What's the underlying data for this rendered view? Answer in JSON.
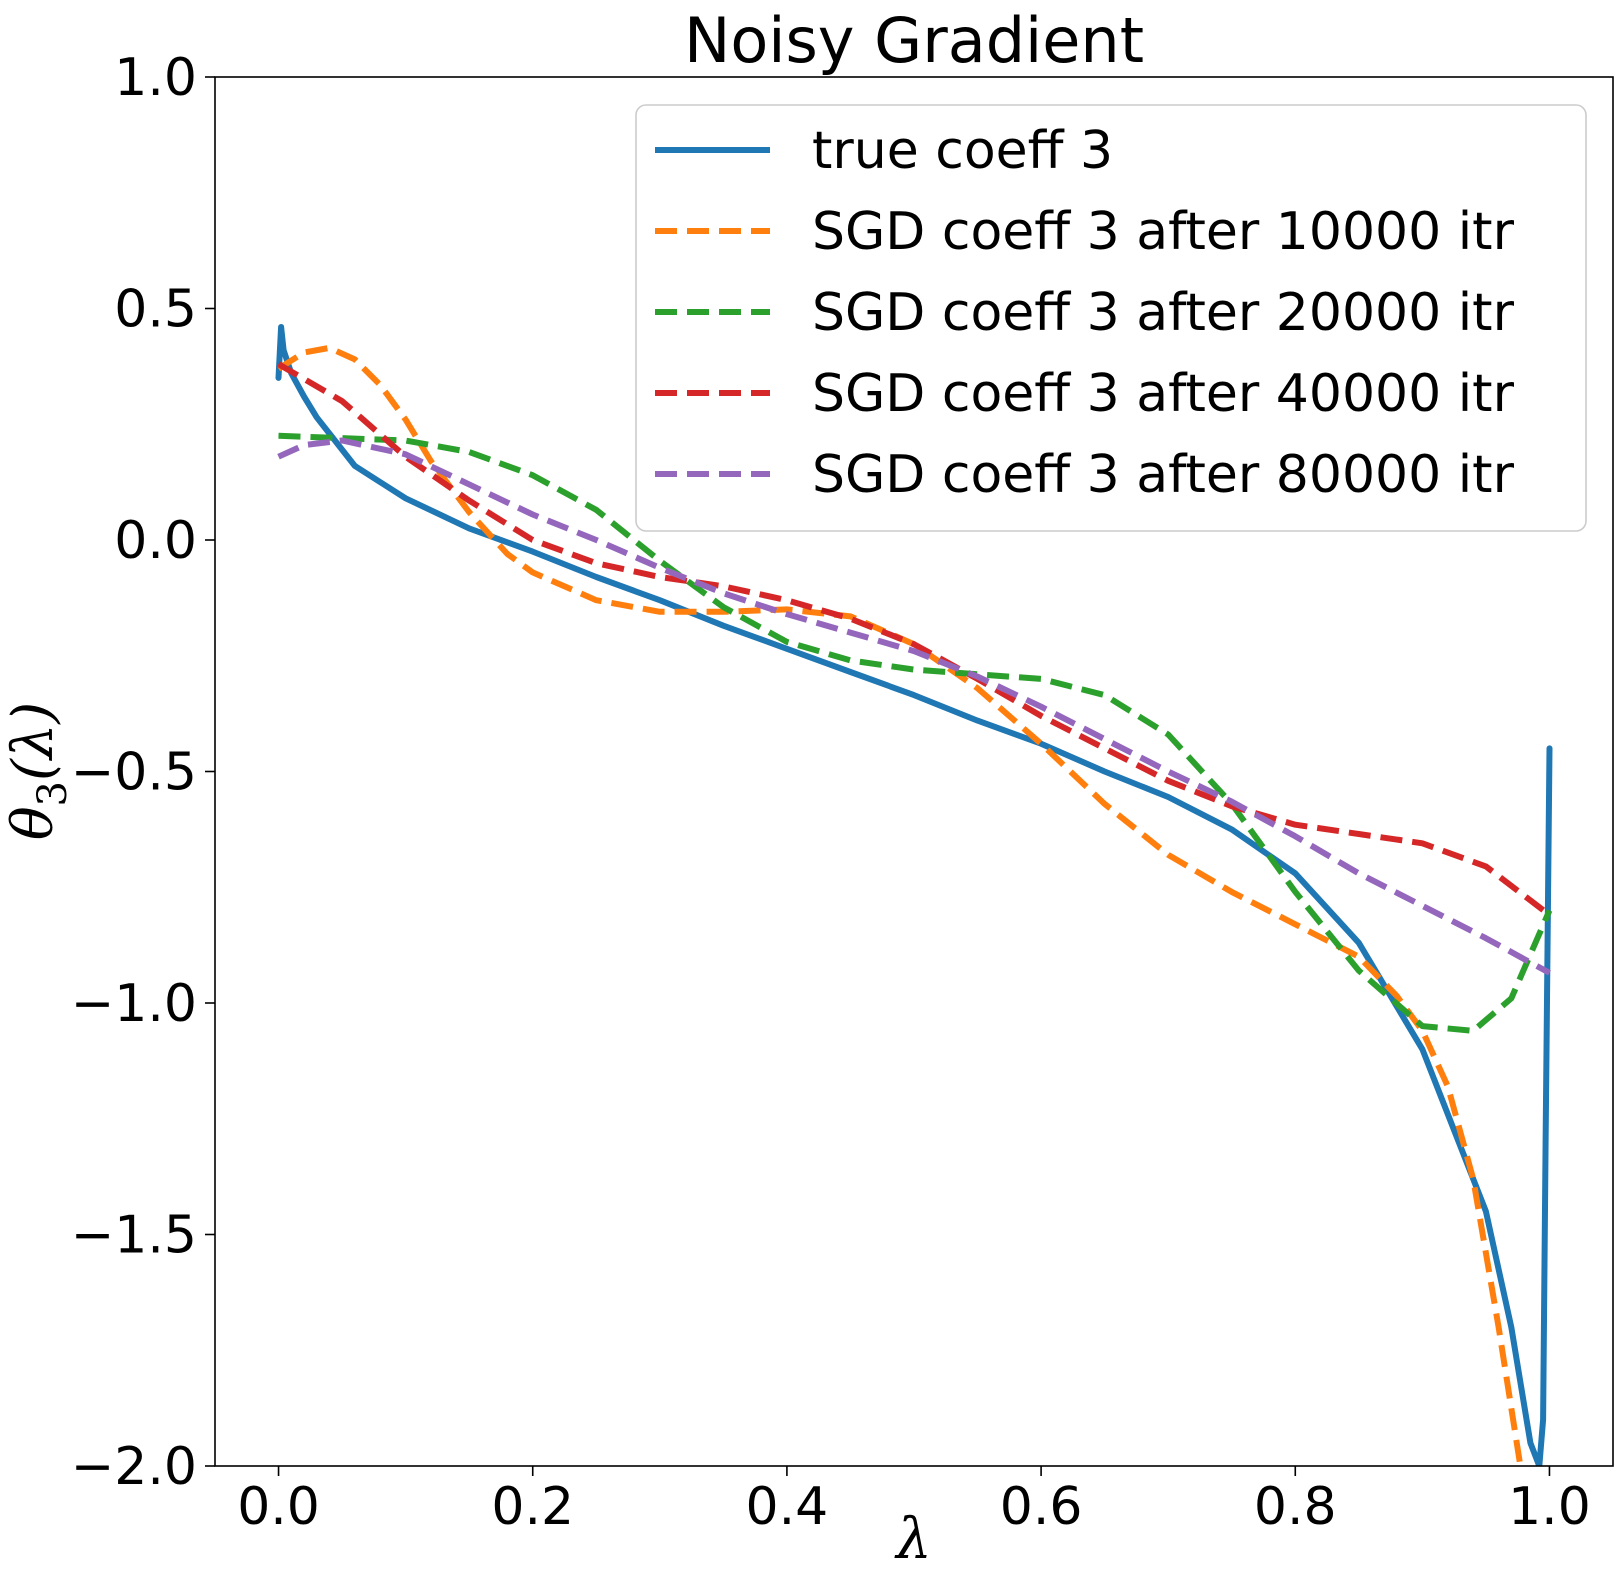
{
  "chart_data": {
    "type": "line",
    "title": "Noisy Gradient",
    "xlabel": "λ",
    "ylabel": {
      "base": "θ",
      "subscript": "3",
      "suffix": "(λ)"
    },
    "xlim": [
      -0.05,
      1.05
    ],
    "ylim": [
      -2.0,
      1.0
    ],
    "x_ticks": [
      0.0,
      0.2,
      0.4,
      0.6,
      0.8,
      1.0
    ],
    "x_tick_labels": [
      "0.0",
      "0.2",
      "0.4",
      "0.6",
      "0.8",
      "1.0"
    ],
    "y_ticks": [
      1.0,
      0.5,
      0.0,
      -0.5,
      -1.0,
      -1.5,
      -2.0
    ],
    "y_tick_labels": [
      "1.0",
      "0.5",
      "0.0",
      "−0.5",
      "−1.0",
      "−1.5",
      "−2.0"
    ],
    "grid": false,
    "legend_position": "upper right",
    "series": [
      {
        "name": "true coeff 3",
        "color": "#1f77b4",
        "style": "solid",
        "points": [
          [
            0.0,
            0.35
          ],
          [
            0.002,
            0.46
          ],
          [
            0.004,
            0.41
          ],
          [
            0.01,
            0.36
          ],
          [
            0.02,
            0.31
          ],
          [
            0.03,
            0.265
          ],
          [
            0.04,
            0.23
          ],
          [
            0.06,
            0.16
          ],
          [
            0.08,
            0.125
          ],
          [
            0.1,
            0.09
          ],
          [
            0.15,
            0.025
          ],
          [
            0.2,
            -0.025
          ],
          [
            0.25,
            -0.08
          ],
          [
            0.3,
            -0.13
          ],
          [
            0.35,
            -0.185
          ],
          [
            0.4,
            -0.235
          ],
          [
            0.45,
            -0.285
          ],
          [
            0.5,
            -0.335
          ],
          [
            0.55,
            -0.39
          ],
          [
            0.6,
            -0.44
          ],
          [
            0.65,
            -0.5
          ],
          [
            0.7,
            -0.555
          ],
          [
            0.75,
            -0.625
          ],
          [
            0.8,
            -0.72
          ],
          [
            0.85,
            -0.87
          ],
          [
            0.9,
            -1.1
          ],
          [
            0.95,
            -1.45
          ],
          [
            0.97,
            -1.7
          ],
          [
            0.985,
            -1.95
          ],
          [
            0.992,
            -2.0
          ],
          [
            0.995,
            -1.9
          ],
          [
            0.997,
            -1.3
          ],
          [
            1.0,
            -0.45
          ]
        ]
      },
      {
        "name": "SGD coeff 3 after 10000 itr",
        "color": "#ff7f0e",
        "style": "dashed",
        "points": [
          [
            0.0,
            0.37
          ],
          [
            0.02,
            0.405
          ],
          [
            0.04,
            0.415
          ],
          [
            0.06,
            0.39
          ],
          [
            0.08,
            0.335
          ],
          [
            0.1,
            0.26
          ],
          [
            0.12,
            0.17
          ],
          [
            0.15,
            0.06
          ],
          [
            0.18,
            -0.03
          ],
          [
            0.2,
            -0.07
          ],
          [
            0.25,
            -0.13
          ],
          [
            0.3,
            -0.155
          ],
          [
            0.35,
            -0.155
          ],
          [
            0.4,
            -0.15
          ],
          [
            0.45,
            -0.165
          ],
          [
            0.5,
            -0.225
          ],
          [
            0.55,
            -0.32
          ],
          [
            0.6,
            -0.44
          ],
          [
            0.65,
            -0.57
          ],
          [
            0.7,
            -0.68
          ],
          [
            0.75,
            -0.76
          ],
          [
            0.8,
            -0.83
          ],
          [
            0.85,
            -0.9
          ],
          [
            0.88,
            -0.985
          ],
          [
            0.9,
            -1.06
          ],
          [
            0.92,
            -1.18
          ],
          [
            0.94,
            -1.38
          ],
          [
            0.96,
            -1.7
          ],
          [
            0.98,
            -2.05
          ]
        ]
      },
      {
        "name": "SGD coeff 3 after 20000 itr",
        "color": "#2ca02c",
        "style": "dashed",
        "points": [
          [
            0.0,
            0.225
          ],
          [
            0.05,
            0.22
          ],
          [
            0.1,
            0.215
          ],
          [
            0.15,
            0.19
          ],
          [
            0.2,
            0.14
          ],
          [
            0.25,
            0.065
          ],
          [
            0.3,
            -0.045
          ],
          [
            0.35,
            -0.145
          ],
          [
            0.4,
            -0.22
          ],
          [
            0.45,
            -0.26
          ],
          [
            0.5,
            -0.28
          ],
          [
            0.55,
            -0.29
          ],
          [
            0.6,
            -0.3
          ],
          [
            0.65,
            -0.335
          ],
          [
            0.7,
            -0.42
          ],
          [
            0.75,
            -0.57
          ],
          [
            0.8,
            -0.76
          ],
          [
            0.85,
            -0.93
          ],
          [
            0.9,
            -1.05
          ],
          [
            0.94,
            -1.06
          ],
          [
            0.97,
            -0.99
          ],
          [
            1.0,
            -0.8
          ]
        ]
      },
      {
        "name": "SGD coeff 3 after 40000 itr",
        "color": "#d62728",
        "style": "dashed",
        "points": [
          [
            0.0,
            0.38
          ],
          [
            0.05,
            0.3
          ],
          [
            0.1,
            0.18
          ],
          [
            0.15,
            0.085
          ],
          [
            0.2,
            0.0
          ],
          [
            0.25,
            -0.05
          ],
          [
            0.3,
            -0.08
          ],
          [
            0.35,
            -0.1
          ],
          [
            0.4,
            -0.13
          ],
          [
            0.45,
            -0.17
          ],
          [
            0.5,
            -0.225
          ],
          [
            0.55,
            -0.3
          ],
          [
            0.6,
            -0.38
          ],
          [
            0.65,
            -0.45
          ],
          [
            0.7,
            -0.52
          ],
          [
            0.75,
            -0.575
          ],
          [
            0.8,
            -0.615
          ],
          [
            0.85,
            -0.635
          ],
          [
            0.9,
            -0.655
          ],
          [
            0.95,
            -0.705
          ],
          [
            1.0,
            -0.81
          ]
        ]
      },
      {
        "name": "SGD coeff 3 after 80000 itr",
        "color": "#9467bd",
        "style": "dashed",
        "points": [
          [
            0.0,
            0.18
          ],
          [
            0.02,
            0.205
          ],
          [
            0.05,
            0.215
          ],
          [
            0.1,
            0.185
          ],
          [
            0.15,
            0.12
          ],
          [
            0.2,
            0.055
          ],
          [
            0.25,
            0.0
          ],
          [
            0.3,
            -0.06
          ],
          [
            0.35,
            -0.115
          ],
          [
            0.4,
            -0.16
          ],
          [
            0.45,
            -0.2
          ],
          [
            0.5,
            -0.24
          ],
          [
            0.55,
            -0.295
          ],
          [
            0.6,
            -0.36
          ],
          [
            0.65,
            -0.43
          ],
          [
            0.7,
            -0.5
          ],
          [
            0.75,
            -0.565
          ],
          [
            0.8,
            -0.64
          ],
          [
            0.85,
            -0.72
          ],
          [
            0.9,
            -0.79
          ],
          [
            0.95,
            -0.86
          ],
          [
            1.0,
            -0.935
          ]
        ]
      }
    ]
  }
}
